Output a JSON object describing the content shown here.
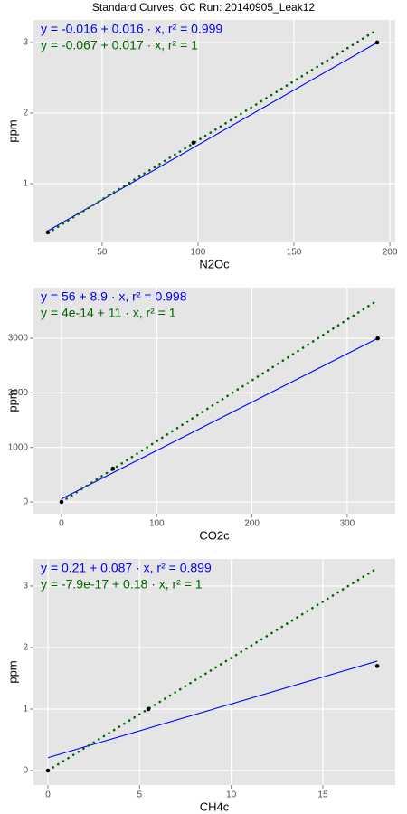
{
  "title": "Standard Curves, GC Run: 20140905_Leak12",
  "chart_data": [
    {
      "type": "scatter",
      "xlabel": "N2Oc",
      "ylabel": "ppm",
      "xlim": [
        14.2,
        202.8
      ],
      "ylim": [
        0.167,
        3.32
      ],
      "xticks": [
        50,
        100,
        150,
        200
      ],
      "yticks": [
        1,
        2,
        3
      ],
      "grid": true,
      "points": {
        "color": "#000000",
        "x": [
          21.7,
          97.6,
          193.4
        ],
        "y": [
          0.31,
          1.58,
          3.0
        ]
      },
      "lines": [
        {
          "color": "#0000ff",
          "style": "solid",
          "x": [
            21.7,
            193.4
          ],
          "y": [
            0.33,
            3.0
          ]
        },
        {
          "color": "#006400",
          "style": "dotted",
          "x": [
            21.7,
            193.4
          ],
          "y": [
            0.3,
            3.18
          ]
        }
      ],
      "annotations": [
        {
          "text": "y = -0.016 + 0.016 · x,  r² = 0.999",
          "color": "#0000ff"
        },
        {
          "text": "y = -0.067 + 0.017 · x,  r² = 1",
          "color": "#006400"
        }
      ]
    },
    {
      "type": "scatter",
      "xlabel": "CO2c",
      "ylabel": "ppm",
      "xlim": [
        -29.4,
        350.4
      ],
      "ylim": [
        -216,
        3930
      ],
      "xticks": [
        0,
        100,
        200,
        300
      ],
      "yticks": [
        0,
        1000,
        2000,
        3000
      ],
      "grid": true,
      "points": {
        "color": "#000000",
        "x": [
          0,
          54,
          332
        ],
        "y": [
          0,
          610,
          3000
        ]
      },
      "lines": [
        {
          "color": "#0000ff",
          "style": "solid",
          "x": [
            0,
            332
          ],
          "y": [
            56,
            3000
          ]
        },
        {
          "color": "#006400",
          "style": "dotted",
          "x": [
            0,
            332
          ],
          "y": [
            0,
            3700
          ]
        }
      ],
      "annotations": [
        {
          "text": "y = 56 + 8.9 · x,  r² = 0.998",
          "color": "#0000ff"
        },
        {
          "text": "y = 4e-14 + 11 · x,  r² = 1",
          "color": "#006400"
        }
      ]
    },
    {
      "type": "scatter",
      "xlabel": "CH4c",
      "ylabel": "ppm",
      "xlim": [
        -0.79,
        18.95
      ],
      "ylim": [
        -0.235,
        3.44
      ],
      "xticks": [
        0,
        5,
        10,
        15
      ],
      "yticks": [
        0,
        1,
        2,
        3
      ],
      "grid": true,
      "points": {
        "color": "#000000",
        "x": [
          0,
          5.48,
          17.97
        ],
        "y": [
          0,
          1.0,
          1.7
        ]
      },
      "lines": [
        {
          "color": "#0000ff",
          "style": "solid",
          "x": [
            0,
            17.97
          ],
          "y": [
            0.21,
            1.78
          ]
        },
        {
          "color": "#006400",
          "style": "dotted",
          "x": [
            0,
            17.97
          ],
          "y": [
            0,
            3.29
          ]
        }
      ],
      "annotations": [
        {
          "text": "y = 0.21 + 0.087 · x,  r² = 0.899",
          "color": "#0000ff"
        },
        {
          "text": "y = -7.9e-17 + 0.18 · x,  r² = 1",
          "color": "#006400"
        }
      ]
    }
  ]
}
